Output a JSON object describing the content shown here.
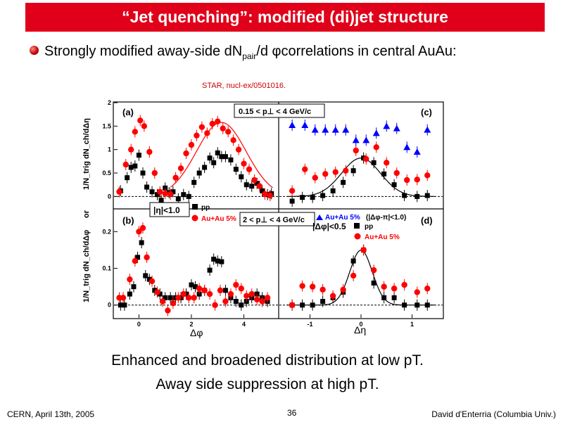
{
  "slide": {
    "title": "“Jet quenching”: modified (di)jet structure",
    "bullet_text_1": "Strongly modified away-side dN",
    "bullet_sub": "pair",
    "bullet_text_2": "/d φcorrelations in central AuAu:",
    "source_note": "STAR, nucl-ex/0501016.",
    "summary_line_1": "Enhanced and broadened distribution at low pT.",
    "summary_line_2": "Away side suppression at high pT.",
    "footer_left": "CERN, April 13th, 2005",
    "footer_center": "36",
    "footer_right": "David d'Enterria (Columbia Univ.)"
  },
  "colors": {
    "title_bg": "#e0001a",
    "pp": "#000000",
    "auau": "#ff0000",
    "auau_triangle": "#0000ff"
  },
  "figure": {
    "y_axis_label_top": "1/N_trig dN_ch/dΔη",
    "y_axis_label_bottom": "1/N_trig dN_ch/dΔφ",
    "y_axis_or": "or",
    "x_label_left": "Δφ",
    "x_label_right": "Δη",
    "panel_a_tag": "(a)",
    "panel_b_tag": "(b)",
    "panel_c_tag": "(c)",
    "panel_d_tag": "(d)",
    "pt_low_label": "0.15 < p⊥ < 4 GeV/c",
    "pt_high_label": "2 < p⊥ < 4 GeV/c",
    "eta_cut_label": "|η|<1.0",
    "phi_cut_label": "|Δφ|<0.5",
    "legend_pp": "pp",
    "legend_auau": "Au+Au 5%",
    "legend_auau_tri": "Au+Au 5%",
    "legend_auau_tri_cut": "(|Δφ-π|<1.0)"
  },
  "chart_data": [
    {
      "panel": "a",
      "type": "scatter",
      "xlabel": "",
      "ylabel": "",
      "xlim": [
        -0.95,
        5.3
      ],
      "ylim": [
        -0.25,
        2.0
      ],
      "xticks": [],
      "yticks": [
        0,
        0.5,
        1,
        1.5,
        2
      ],
      "series": [
        {
          "name": "pp",
          "marker": "square",
          "color": "#000000",
          "x": [
            -0.7,
            -0.45,
            -0.3,
            -0.15,
            0.0,
            0.15,
            0.3,
            0.5,
            0.7,
            0.85,
            1.0,
            1.15,
            1.3,
            1.5,
            1.7,
            1.9,
            2.1,
            2.3,
            2.5,
            2.7,
            2.85,
            3.0,
            3.15,
            3.3,
            3.5,
            3.7,
            3.9,
            4.1,
            4.3,
            4.5,
            4.7,
            4.9,
            5.05
          ],
          "y": [
            0.12,
            0.4,
            0.62,
            0.65,
            0.88,
            0.5,
            0.2,
            0.1,
            0.04,
            -0.08,
            0.18,
            0.08,
            0.1,
            -0.05,
            0.04,
            0.0,
            0.3,
            0.5,
            0.62,
            0.82,
            0.72,
            0.93,
            0.85,
            0.85,
            0.78,
            0.58,
            0.42,
            0.25,
            0.22,
            0.28,
            0.12,
            0.04,
            0.06
          ]
        },
        {
          "name": "Au+Au 5%",
          "marker": "circle",
          "color": "#ff0000",
          "x": [
            -0.75,
            -0.5,
            -0.3,
            -0.15,
            0.05,
            0.2,
            0.4,
            0.6,
            0.8,
            1.0,
            1.2,
            1.4,
            1.6,
            1.8,
            2.0,
            2.2,
            2.4,
            2.6,
            2.8,
            3.0,
            3.2,
            3.4,
            3.6,
            3.8,
            4.0,
            4.2,
            4.4,
            4.6,
            4.8,
            5.0
          ],
          "y": [
            0.1,
            0.68,
            1.0,
            1.38,
            1.62,
            1.5,
            0.95,
            0.5,
            0.1,
            0.06,
            0.05,
            0.4,
            0.6,
            0.92,
            1.1,
            1.3,
            1.48,
            1.35,
            1.55,
            1.6,
            1.45,
            1.38,
            1.2,
            1.0,
            0.7,
            0.58,
            0.35,
            0.22,
            0.05,
            0.02
          ]
        }
      ],
      "fit_curves": [
        {
          "color": "#ff0000",
          "type": "gaussian",
          "center": 3.14,
          "amplitude": 1.58,
          "sigma": 0.95,
          "xrange": [
            1.2,
            5.1
          ]
        }
      ]
    },
    {
      "panel": "b",
      "type": "scatter",
      "xlabel": "Δφ",
      "ylabel": "",
      "xlim": [
        -0.95,
        5.3
      ],
      "ylim": [
        -0.035,
        0.26
      ],
      "xticks": [
        0,
        2,
        4
      ],
      "yticks": [
        0,
        0.1,
        0.2
      ],
      "series": [
        {
          "name": "pp",
          "marker": "square",
          "color": "#000000",
          "x": [
            -0.7,
            -0.55,
            -0.35,
            -0.2,
            -0.05,
            0.1,
            0.25,
            0.4,
            0.6,
            0.8,
            1.0,
            1.2,
            1.4,
            1.6,
            1.8,
            2.0,
            2.15,
            2.3,
            2.5,
            2.7,
            2.85,
            3.0,
            3.15,
            3.3,
            3.5,
            3.7,
            3.9,
            4.1,
            4.3,
            4.5,
            4.7,
            4.9
          ],
          "y": [
            0.0,
            0.0,
            0.03,
            0.05,
            0.13,
            0.17,
            0.08,
            0.07,
            0.04,
            0.03,
            0.02,
            0.02,
            0.02,
            0.02,
            0.03,
            0.055,
            0.05,
            0.03,
            0.04,
            0.095,
            0.125,
            0.12,
            0.118,
            0.04,
            0.02,
            0.01,
            0.0,
            0.01,
            0.02,
            0.03,
            0.02,
            0.01
          ]
        },
        {
          "name": "Au+Au 5%",
          "marker": "circle",
          "color": "#ff0000",
          "x": [
            -0.75,
            -0.6,
            -0.35,
            -0.15,
            0.0,
            0.15,
            0.3,
            0.5,
            0.7,
            0.9,
            1.1,
            1.3,
            1.5,
            1.7,
            1.9,
            2.1,
            2.3,
            2.5,
            2.7,
            2.9,
            3.1,
            3.3,
            3.5,
            3.7,
            3.9,
            4.1,
            4.3,
            4.5,
            4.7,
            4.9
          ],
          "y": [
            0.02,
            0.02,
            0.07,
            0.12,
            0.2,
            0.21,
            0.13,
            0.065,
            0.035,
            0.01,
            -0.015,
            0.005,
            0.02,
            0.03,
            0.02,
            0.02,
            0.045,
            0.04,
            0.03,
            0.0,
            0.04,
            0.01,
            0.03,
            0.055,
            0.045,
            0.025,
            0.03,
            0.015,
            0.01,
            0.02
          ]
        }
      ]
    },
    {
      "panel": "c",
      "type": "scatter",
      "xlabel": "",
      "ylabel": "",
      "xlim": [
        -1.6,
        1.6
      ],
      "ylim": [
        -0.25,
        2.0
      ],
      "xticks": [],
      "yticks": [],
      "series": [
        {
          "name": "pp",
          "marker": "square",
          "color": "#000000",
          "x": [
            -1.35,
            -1.15,
            -0.95,
            -0.75,
            -0.55,
            -0.35,
            -0.15,
            0.05,
            0.25,
            0.45,
            0.65,
            0.85,
            1.1,
            1.3
          ],
          "y": [
            -0.1,
            -0.02,
            -0.02,
            0.02,
            0.12,
            0.3,
            0.55,
            0.82,
            0.72,
            0.48,
            0.25,
            0.02,
            0.0,
            0.02
          ]
        },
        {
          "name": "Au+Au 5%",
          "marker": "circle",
          "color": "#ff0000",
          "x": [
            -1.35,
            -1.1,
            -0.9,
            -0.7,
            -0.5,
            -0.3,
            -0.1,
            0.1,
            0.3,
            0.5,
            0.7,
            0.9,
            1.1,
            1.3
          ],
          "y": [
            0.12,
            0.58,
            0.4,
            0.48,
            0.52,
            0.55,
            0.98,
            0.8,
            1.05,
            0.72,
            0.5,
            0.35,
            0.36,
            0.45
          ]
        },
        {
          "name": "Au+Au 5% (|Δφ-π|<1.0)",
          "marker": "triangle",
          "color": "#0000ff",
          "x": [
            -1.35,
            -1.1,
            -0.9,
            -0.7,
            -0.5,
            -0.3,
            -0.1,
            0.1,
            0.3,
            0.5,
            0.7,
            0.9,
            1.1,
            1.3
          ],
          "y": [
            1.52,
            1.52,
            1.42,
            1.42,
            1.42,
            1.42,
            1.2,
            1.2,
            1.35,
            1.5,
            1.45,
            1.05,
            0.95,
            1.42
          ]
        }
      ],
      "fit_curves": [
        {
          "color": "#000000",
          "type": "gaussian",
          "center": 0.0,
          "amplitude": 0.82,
          "sigma": 0.38,
          "xrange": [
            -1.45,
            1.45
          ]
        }
      ]
    },
    {
      "panel": "d",
      "type": "scatter",
      "xlabel": "Δη",
      "ylabel": "",
      "xlim": [
        -1.6,
        1.6
      ],
      "ylim": [
        -0.035,
        0.26
      ],
      "xticks": [
        -1,
        0,
        1
      ],
      "yticks": [],
      "series": [
        {
          "name": "pp",
          "marker": "square",
          "color": "#000000",
          "x": [
            -1.35,
            -1.15,
            -0.95,
            -0.75,
            -0.55,
            -0.35,
            -0.15,
            0.05,
            0.25,
            0.45,
            0.65,
            0.85,
            1.1,
            1.3
          ],
          "y": [
            0.0,
            0.0,
            0.0,
            0.01,
            0.02,
            0.035,
            0.12,
            0.15,
            0.06,
            0.02,
            0.02,
            0.0,
            0.0,
            0.0
          ]
        },
        {
          "name": "Au+Au 5%",
          "marker": "circle",
          "color": "#ff0000",
          "x": [
            -1.35,
            -1.15,
            -0.95,
            -0.75,
            -0.55,
            -0.35,
            -0.15,
            0.05,
            0.25,
            0.45,
            0.65,
            0.85,
            1.1,
            1.3
          ],
          "y": [
            0.0,
            0.052,
            0.05,
            0.042,
            0.025,
            0.042,
            0.08,
            0.15,
            0.095,
            0.05,
            0.045,
            0.055,
            0.035,
            0.045
          ]
        }
      ],
      "fit_curves": [
        {
          "color": "#000000",
          "type": "gaussian",
          "center": 0.0,
          "amplitude": 0.15,
          "sigma": 0.22,
          "xrange": [
            -1.45,
            1.45
          ]
        }
      ]
    }
  ]
}
